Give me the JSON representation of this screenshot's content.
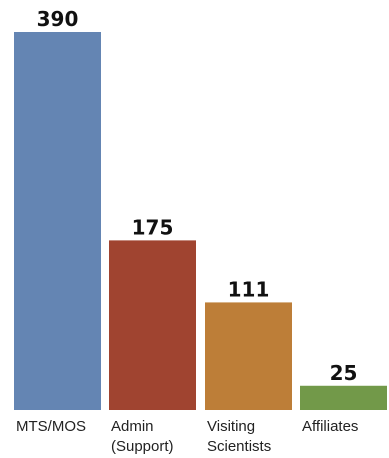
{
  "chart_data": {
    "type": "bar",
    "title": "",
    "xlabel": "",
    "ylabel": "",
    "categories": [
      [
        "MTS/MOS"
      ],
      [
        "Admin",
        "(Support)"
      ],
      [
        "Visiting",
        "Scientists"
      ],
      [
        "Affiliates"
      ]
    ],
    "values": [
      390,
      175,
      111,
      25
    ],
    "value_labels": [
      "390",
      "175",
      "111",
      "25"
    ],
    "colors": [
      "#6485b3",
      "#a04430",
      "#bd7e38",
      "#729949"
    ],
    "ylim": [
      0,
      390
    ],
    "grid": false,
    "legend": "none"
  }
}
